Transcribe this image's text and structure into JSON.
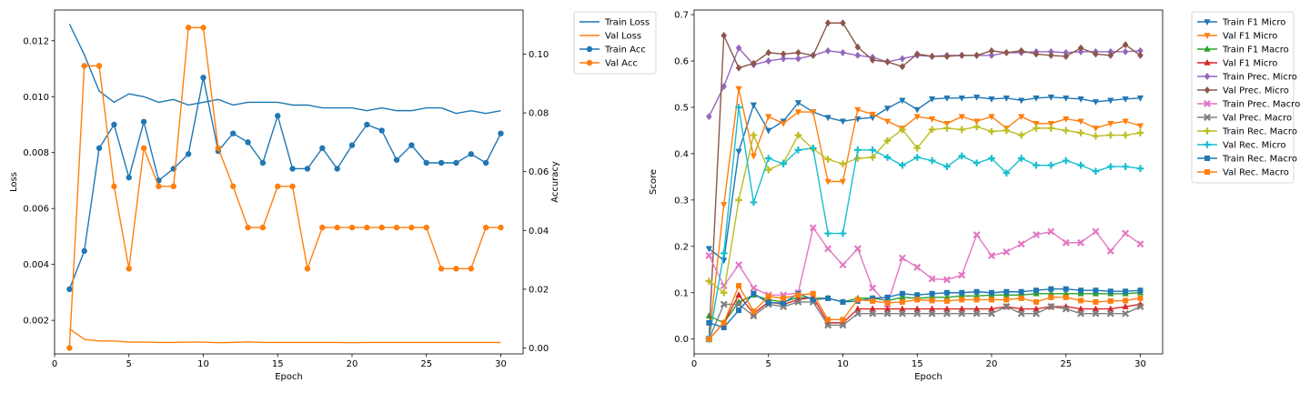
{
  "chart_data": [
    {
      "type": "line",
      "xlabel": "Epoch",
      "ylabel": "Loss",
      "ylabel_right": "Accuracy",
      "xlim": [
        0,
        31.5
      ],
      "ylim": [
        0.0008,
        0.0131
      ],
      "ylim_right": [
        -0.002,
        0.115
      ],
      "xticks": [
        0,
        5,
        10,
        15,
        20,
        25,
        30
      ],
      "yticks": [
        0.002,
        0.004,
        0.006,
        0.008,
        0.01,
        0.012
      ],
      "ytick_labels": [
        "0.002",
        "0.004",
        "0.006",
        "0.008",
        "0.010",
        "0.012"
      ],
      "yticks_right": [
        0.0,
        0.02,
        0.04,
        0.06,
        0.08,
        0.1
      ],
      "ytick_labels_right": [
        "0.00",
        "0.02",
        "0.04",
        "0.06",
        "0.08",
        "0.10"
      ],
      "grid": false,
      "legend_position": "outside-top-right",
      "x": [
        1,
        2,
        3,
        4,
        5,
        6,
        7,
        8,
        9,
        10,
        11,
        12,
        13,
        14,
        15,
        16,
        17,
        18,
        19,
        20,
        21,
        22,
        23,
        24,
        25,
        26,
        27,
        28,
        29,
        30
      ],
      "series": [
        {
          "name": "Train Loss",
          "axis": "left",
          "color": "#1f77b4",
          "marker": "none",
          "values": [
            0.0126,
            0.0115,
            0.0102,
            0.0098,
            0.0101,
            0.01,
            0.0098,
            0.0099,
            0.0097,
            0.0098,
            0.0099,
            0.0097,
            0.0098,
            0.0098,
            0.0098,
            0.0097,
            0.0097,
            0.0096,
            0.0096,
            0.0096,
            0.0095,
            0.0096,
            0.0095,
            0.0095,
            0.0096,
            0.0096,
            0.0094,
            0.0095,
            0.0094,
            0.0095
          ]
        },
        {
          "name": "Val Loss",
          "axis": "left",
          "color": "#ff7f0e",
          "marker": "none",
          "values": [
            0.0017,
            0.00132,
            0.00126,
            0.00126,
            0.00122,
            0.00122,
            0.00121,
            0.00121,
            0.00122,
            0.00122,
            0.0012,
            0.00121,
            0.00123,
            0.00121,
            0.00121,
            0.00121,
            0.00121,
            0.00121,
            0.00121,
            0.0012,
            0.00121,
            0.00121,
            0.00121,
            0.00121,
            0.00121,
            0.00121,
            0.00121,
            0.00121,
            0.00121,
            0.00121
          ]
        },
        {
          "name": "Train Acc",
          "axis": "right",
          "color": "#1f77b4",
          "marker": "circle",
          "values": [
            0.02,
            0.033,
            0.068,
            0.076,
            0.058,
            0.077,
            0.057,
            0.061,
            0.066,
            0.092,
            0.067,
            0.073,
            0.07,
            0.063,
            0.079,
            0.061,
            0.061,
            0.068,
            0.061,
            0.069,
            0.076,
            0.074,
            0.064,
            0.069,
            0.063,
            0.063,
            0.063,
            0.066,
            0.063,
            0.073
          ]
        },
        {
          "name": "Val Acc",
          "axis": "right",
          "color": "#ff7f0e",
          "marker": "circle",
          "values": [
            0.0,
            0.096,
            0.096,
            0.055,
            0.027,
            0.068,
            0.055,
            0.055,
            0.109,
            0.109,
            0.068,
            0.055,
            0.041,
            0.041,
            0.055,
            0.055,
            0.027,
            0.041,
            0.041,
            0.041,
            0.041,
            0.041,
            0.041,
            0.041,
            0.041,
            0.027,
            0.027,
            0.027,
            0.041,
            0.041
          ]
        }
      ]
    },
    {
      "type": "line",
      "xlabel": "Epoch",
      "ylabel": "Score",
      "xlim": [
        0,
        31.5
      ],
      "ylim": [
        -0.032,
        0.71
      ],
      "xticks": [
        0,
        5,
        10,
        15,
        20,
        25,
        30
      ],
      "yticks": [
        0.0,
        0.1,
        0.2,
        0.3,
        0.4,
        0.5,
        0.6,
        0.7
      ],
      "ytick_labels": [
        "0.0",
        "0.1",
        "0.2",
        "0.3",
        "0.4",
        "0.5",
        "0.6",
        "0.7"
      ],
      "grid": false,
      "legend_position": "outside-top-right",
      "x": [
        1,
        2,
        3,
        4,
        5,
        6,
        7,
        8,
        9,
        10,
        11,
        12,
        13,
        14,
        15,
        16,
        17,
        18,
        19,
        20,
        21,
        22,
        23,
        24,
        25,
        26,
        27,
        28,
        29,
        30
      ],
      "series": [
        {
          "name": "Train F1 Micro",
          "color": "#1f77b4",
          "marker": "triangle-down",
          "values": [
            0.195,
            0.17,
            0.405,
            0.505,
            0.45,
            0.47,
            0.51,
            0.49,
            0.478,
            0.47,
            0.475,
            0.478,
            0.498,
            0.515,
            0.495,
            0.518,
            0.52,
            0.52,
            0.522,
            0.518,
            0.52,
            0.515,
            0.52,
            0.522,
            0.52,
            0.518,
            0.512,
            0.515,
            0.518,
            0.52
          ]
        },
        {
          "name": "Val F1 Micro",
          "color": "#ff7f0e",
          "marker": "triangle-down",
          "values": [
            0.0,
            0.29,
            0.54,
            0.395,
            0.48,
            0.465,
            0.49,
            0.49,
            0.34,
            0.34,
            0.495,
            0.485,
            0.47,
            0.455,
            0.48,
            0.475,
            0.465,
            0.48,
            0.47,
            0.48,
            0.455,
            0.48,
            0.465,
            0.465,
            0.475,
            0.47,
            0.455,
            0.465,
            0.47,
            0.46
          ]
        },
        {
          "name": "Train F1 Macro",
          "color": "#2ca02c",
          "marker": "triangle-up",
          "values": [
            0.05,
            0.035,
            0.08,
            0.095,
            0.085,
            0.08,
            0.09,
            0.088,
            0.088,
            0.08,
            0.088,
            0.088,
            0.083,
            0.09,
            0.088,
            0.09,
            0.09,
            0.093,
            0.093,
            0.095,
            0.095,
            0.095,
            0.098,
            0.098,
            0.098,
            0.098,
            0.098,
            0.098,
            0.098,
            0.1
          ]
        },
        {
          "name": "Val F1 Micro",
          "color": "#d62728",
          "marker": "triangle-up",
          "values": [
            0.0,
            0.035,
            0.095,
            0.055,
            0.08,
            0.075,
            0.085,
            0.09,
            0.035,
            0.035,
            0.065,
            0.065,
            0.065,
            0.065,
            0.065,
            0.065,
            0.065,
            0.065,
            0.065,
            0.065,
            0.07,
            0.065,
            0.065,
            0.07,
            0.07,
            0.065,
            0.065,
            0.065,
            0.07,
            0.075
          ]
        },
        {
          "name": "Train Prec. Micro",
          "color": "#9467bd",
          "marker": "diamond",
          "values": [
            0.48,
            0.545,
            0.628,
            0.592,
            0.6,
            0.605,
            0.605,
            0.612,
            0.622,
            0.618,
            0.612,
            0.608,
            0.598,
            0.605,
            0.612,
            0.61,
            0.612,
            0.612,
            0.612,
            0.612,
            0.618,
            0.618,
            0.62,
            0.62,
            0.618,
            0.62,
            0.62,
            0.62,
            0.62,
            0.622
          ]
        },
        {
          "name": "Val Prec. Micro",
          "color": "#8c564b",
          "marker": "diamond",
          "values": [
            0.0,
            0.655,
            0.585,
            0.595,
            0.618,
            0.615,
            0.618,
            0.612,
            0.682,
            0.682,
            0.63,
            0.602,
            0.598,
            0.588,
            0.615,
            0.61,
            0.61,
            0.612,
            0.612,
            0.622,
            0.618,
            0.622,
            0.615,
            0.612,
            0.61,
            0.628,
            0.615,
            0.612,
            0.635,
            0.612
          ]
        },
        {
          "name": "Train Prec. Macro",
          "color": "#e377c2",
          "marker": "x",
          "values": [
            0.18,
            0.115,
            0.16,
            0.11,
            0.095,
            0.095,
            0.1,
            0.24,
            0.195,
            0.16,
            0.195,
            0.11,
            0.075,
            0.175,
            0.155,
            0.13,
            0.128,
            0.138,
            0.225,
            0.18,
            0.188,
            0.205,
            0.225,
            0.232,
            0.208,
            0.208,
            0.232,
            0.19,
            0.228,
            0.205
          ]
        },
        {
          "name": "Val Prec. Macro",
          "color": "#7f7f7f",
          "marker": "x",
          "values": [
            0.0,
            0.075,
            0.075,
            0.05,
            0.075,
            0.07,
            0.08,
            0.08,
            0.03,
            0.03,
            0.055,
            0.055,
            0.055,
            0.055,
            0.055,
            0.055,
            0.055,
            0.055,
            0.055,
            0.055,
            0.07,
            0.055,
            0.055,
            0.07,
            0.065,
            0.055,
            0.055,
            0.055,
            0.055,
            0.07
          ]
        },
        {
          "name": "Train Rec. Macro",
          "color": "#bcbd22",
          "marker": "plus",
          "values": [
            0.125,
            0.1,
            0.3,
            0.44,
            0.365,
            0.38,
            0.44,
            0.41,
            0.388,
            0.378,
            0.39,
            0.392,
            0.428,
            0.452,
            0.412,
            0.452,
            0.455,
            0.452,
            0.458,
            0.448,
            0.45,
            0.44,
            0.455,
            0.455,
            0.45,
            0.445,
            0.438,
            0.44,
            0.44,
            0.445
          ]
        },
        {
          "name": "Val Rec. Micro",
          "color": "#17becf",
          "marker": "plus",
          "values": [
            0.0,
            0.185,
            0.5,
            0.295,
            0.39,
            0.378,
            0.408,
            0.412,
            0.228,
            0.228,
            0.408,
            0.408,
            0.392,
            0.375,
            0.392,
            0.385,
            0.372,
            0.395,
            0.38,
            0.39,
            0.358,
            0.39,
            0.375,
            0.375,
            0.385,
            0.375,
            0.362,
            0.372,
            0.372,
            0.368
          ]
        },
        {
          "name": "Train Rec. Macro",
          "color": "#1f77b4",
          "marker": "square",
          "values": [
            0.035,
            0.025,
            0.062,
            0.098,
            0.078,
            0.078,
            0.098,
            0.085,
            0.088,
            0.08,
            0.082,
            0.088,
            0.09,
            0.098,
            0.095,
            0.098,
            0.1,
            0.1,
            0.102,
            0.1,
            0.102,
            0.102,
            0.105,
            0.108,
            0.108,
            0.105,
            0.105,
            0.103,
            0.103,
            0.105
          ]
        },
        {
          "name": "Val Rec. Macro",
          "color": "#ff7f0e",
          "marker": "square",
          "values": [
            0.0,
            0.035,
            0.115,
            0.06,
            0.092,
            0.088,
            0.095,
            0.098,
            0.042,
            0.042,
            0.085,
            0.082,
            0.078,
            0.08,
            0.085,
            0.083,
            0.082,
            0.085,
            0.085,
            0.085,
            0.085,
            0.088,
            0.08,
            0.09,
            0.09,
            0.083,
            0.08,
            0.082,
            0.083,
            0.088
          ]
        }
      ]
    }
  ]
}
